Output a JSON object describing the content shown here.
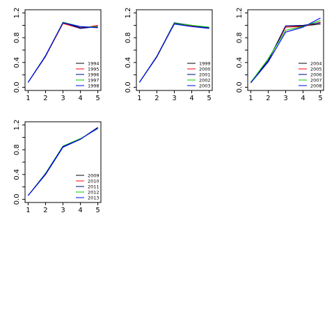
{
  "chart_data": [
    {
      "type": "line",
      "x": [
        1,
        2,
        3,
        4,
        5
      ],
      "xlim": [
        1,
        5
      ],
      "ylim": [
        0,
        1.2
      ],
      "x_ticks": [
        "1",
        "2",
        "3",
        "4",
        "5"
      ],
      "y_ticks": [
        "0.0",
        "0.4",
        "0.8",
        "1.2"
      ],
      "legend_position": "bottom-right",
      "series": [
        {
          "name": "1994",
          "color": "#000000",
          "values": [
            0.08,
            0.5,
            1.04,
            0.96,
            0.98
          ]
        },
        {
          "name": "1995",
          "color": "#ff0000",
          "values": [
            0.08,
            0.5,
            1.03,
            0.95,
            1.0
          ]
        },
        {
          "name": "1996",
          "color": "#00008b",
          "values": [
            0.08,
            0.5,
            1.05,
            0.95,
            0.98
          ]
        },
        {
          "name": "1997",
          "color": "#00c800",
          "values": [
            0.08,
            0.51,
            1.05,
            0.98,
            0.97
          ]
        },
        {
          "name": "1998",
          "color": "#0000ff",
          "values": [
            0.08,
            0.51,
            1.04,
            0.98,
            0.96
          ]
        }
      ]
    },
    {
      "type": "line",
      "x": [
        1,
        2,
        3,
        4,
        5
      ],
      "xlim": [
        1,
        5
      ],
      "ylim": [
        0,
        1.2
      ],
      "x_ticks": [
        "1",
        "2",
        "3",
        "4",
        "5"
      ],
      "y_ticks": [
        "0.0",
        "0.4",
        "0.8",
        "1.2"
      ],
      "legend_position": "bottom-right",
      "series": [
        {
          "name": "1999",
          "color": "#000000",
          "values": [
            0.08,
            0.49,
            1.03,
            0.99,
            0.96
          ]
        },
        {
          "name": "2000",
          "color": "#ff0000",
          "values": [
            0.08,
            0.5,
            1.04,
            0.99,
            0.97
          ]
        },
        {
          "name": "2001",
          "color": "#00008b",
          "values": [
            0.08,
            0.5,
            1.04,
            1.0,
            0.96
          ]
        },
        {
          "name": "2002",
          "color": "#00c800",
          "values": [
            0.08,
            0.5,
            1.03,
            1.0,
            0.97
          ]
        },
        {
          "name": "2003",
          "color": "#0000ff",
          "values": [
            0.08,
            0.5,
            1.02,
            0.98,
            0.95
          ]
        }
      ]
    },
    {
      "type": "line",
      "x": [
        1,
        2,
        3,
        4,
        5
      ],
      "xlim": [
        1,
        5
      ],
      "ylim": [
        0,
        1.2
      ],
      "x_ticks": [
        "1",
        "2",
        "3",
        "4",
        "5"
      ],
      "y_ticks": [
        "0.0",
        "0.4",
        "0.8",
        "1.2"
      ],
      "legend_position": "bottom-right",
      "series": [
        {
          "name": "2004",
          "color": "#000000",
          "values": [
            0.08,
            0.43,
            0.99,
            0.99,
            1.02
          ]
        },
        {
          "name": "2005",
          "color": "#ff0000",
          "values": [
            0.08,
            0.43,
            0.97,
            0.98,
            1.05
          ]
        },
        {
          "name": "2006",
          "color": "#00008b",
          "values": [
            0.08,
            0.43,
            0.99,
            1.0,
            1.04
          ]
        },
        {
          "name": "2007",
          "color": "#00c800",
          "values": [
            0.08,
            0.46,
            0.92,
            0.98,
            1.08
          ]
        },
        {
          "name": "2008",
          "color": "#0000ff",
          "values": [
            0.07,
            0.41,
            0.89,
            0.97,
            1.12
          ]
        }
      ]
    },
    {
      "type": "line",
      "x": [
        1,
        2,
        3,
        4,
        5
      ],
      "xlim": [
        1,
        5
      ],
      "ylim": [
        0,
        1.2
      ],
      "x_ticks": [
        "1",
        "2",
        "3",
        "4",
        "5"
      ],
      "y_ticks": [
        "0.0",
        "0.4",
        "0.8",
        "1.2"
      ],
      "legend_position": "bottom-right",
      "series": [
        {
          "name": "2009",
          "color": "#000000",
          "values": [
            0.06,
            0.41,
            0.85,
            0.97,
            1.16
          ]
        },
        {
          "name": "2010",
          "color": "#ff0000",
          "values": [
            0.06,
            0.41,
            0.85,
            0.97,
            1.15
          ]
        },
        {
          "name": "2011",
          "color": "#00008b",
          "values": [
            0.06,
            0.4,
            0.84,
            0.97,
            1.16
          ]
        },
        {
          "name": "2012",
          "color": "#00c800",
          "values": [
            0.06,
            0.42,
            0.86,
            0.98,
            1.14
          ]
        },
        {
          "name": "2013",
          "color": "#0000ff",
          "values": [
            0.06,
            0.41,
            0.85,
            0.97,
            1.15
          ]
        }
      ]
    }
  ]
}
